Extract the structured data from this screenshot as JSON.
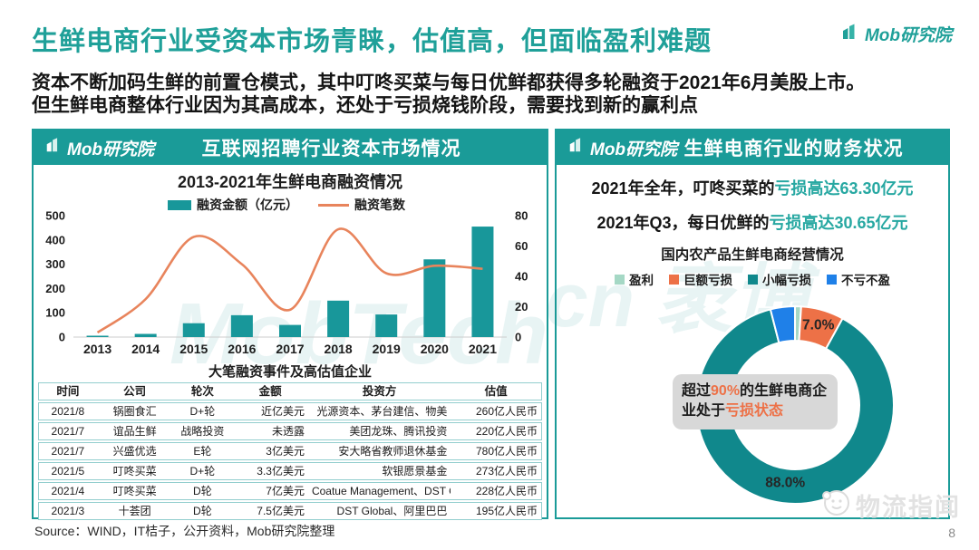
{
  "page": {
    "title": "生鲜电商行业受资本市场青睐，估值高，但面临盈利难题",
    "subtitle_line1": "资本不断加码生鲜的前置仓模式，其中叮咚买菜与每日优鲜都获得多轮融资于2021年6月美股上市。",
    "subtitle_line2": "但生鲜电商整体行业因为其高成本，还处于亏损烧钱阶段，需要找到新的赢利点",
    "brand": "Mob研究院",
    "source": "Source：WIND，IT桔子，公开资料，Mob研究院整理",
    "page_number": "8",
    "watermarks": {
      "left_panel": "MobTech",
      "right_panel": "cn 袤博",
      "corner": "物流指闻"
    },
    "colors": {
      "teal": "#1A9B98",
      "teal_text": "#1FA099",
      "orange": "#E8845C",
      "highlight_orange": "#ED7147"
    }
  },
  "left_panel": {
    "brand": "Mob研究院",
    "header_title": "互联网招聘行业资本市场情况",
    "table_title": "大笔融资事件及高估值企业",
    "table": {
      "headers": [
        "时间",
        "公司",
        "轮次",
        "金额",
        "投资方",
        "估值"
      ],
      "rows": [
        [
          "2021/8",
          "锅圈食汇",
          "D+轮",
          "近亿美元",
          "光源资本、茅台建信、物美",
          "260亿人民币"
        ],
        [
          "2021/7",
          "谊品生鲜",
          "战略投资",
          "未透露",
          "美团龙珠、腾讯投资",
          "220亿人民币"
        ],
        [
          "2021/7",
          "兴盛优选",
          "E轮",
          "3亿美元",
          "安大略省教师退休基金",
          "780亿人民币"
        ],
        [
          "2021/5",
          "叮咚买菜",
          "D+轮",
          "3.3亿美元",
          "软银愿景基金",
          "273亿人民币"
        ],
        [
          "2021/4",
          "叮咚买菜",
          "D轮",
          "7亿美元",
          "Coatue Management、DST Global",
          "228亿人民币"
        ],
        [
          "2021/3",
          "十荟团",
          "D轮",
          "7.5亿美元",
          "DST Global、阿里巴巴",
          "195亿人民币"
        ]
      ]
    }
  },
  "right_panel": {
    "brand": "Mob研究院",
    "header_title": "生鲜电商行业的财务状况",
    "stat_lines": [
      {
        "black": "2021年全年，叮咚买菜的",
        "teal": "亏损高达63.30亿元"
      },
      {
        "black": "2021年Q3，每日优鲜的",
        "teal": "亏损高达30.65亿元"
      }
    ],
    "donut_center": {
      "l1_black1": "超过",
      "l1_orange": "90%",
      "l1_black2": "的生鲜电",
      "l2_black": "商企业处于",
      "l2_orange": "亏损状态"
    }
  },
  "chart_data": [
    {
      "type": "bar",
      "title": "2013-2021年生鲜电商融资情况",
      "categories": [
        "2013",
        "2014",
        "2015",
        "2016",
        "2017",
        "2018",
        "2019",
        "2020",
        "2021"
      ],
      "series": [
        {
          "name": "融资金额（亿元）",
          "type": "bar",
          "axis": "left",
          "color": "#18979A",
          "values": [
            3,
            13,
            57,
            90,
            50,
            150,
            93,
            320,
            455
          ]
        },
        {
          "name": "融资笔数",
          "type": "line",
          "axis": "right",
          "color": "#E8845C",
          "values": [
            3,
            25,
            66,
            48,
            18,
            71,
            42,
            47,
            45
          ]
        }
      ],
      "xlabel": "",
      "ylabel_left": "融资金额（亿元）",
      "ylabel_right": "融资笔数",
      "ylim_left": [
        0,
        500
      ],
      "yticks_left": [
        0,
        100,
        200,
        300,
        400,
        500
      ],
      "ylim_right": [
        0,
        80
      ],
      "yticks_right": [
        0,
        20,
        40,
        60,
        80
      ],
      "grid": false,
      "legend_position": "top"
    },
    {
      "type": "pie",
      "donut": true,
      "title": "国内农产品生鲜电商经营情况",
      "labels": [
        "盈利",
        "巨额亏损",
        "小幅亏损",
        "不亏不盈"
      ],
      "values": [
        1.0,
        7.0,
        88.0,
        4.0
      ],
      "colors": [
        "#A5D8C5",
        "#ED7147",
        "#10888C",
        "#1F80E8"
      ],
      "visible_labels": [
        "",
        "7.0%",
        "88.0%",
        ""
      ],
      "legend_position": "top"
    }
  ]
}
